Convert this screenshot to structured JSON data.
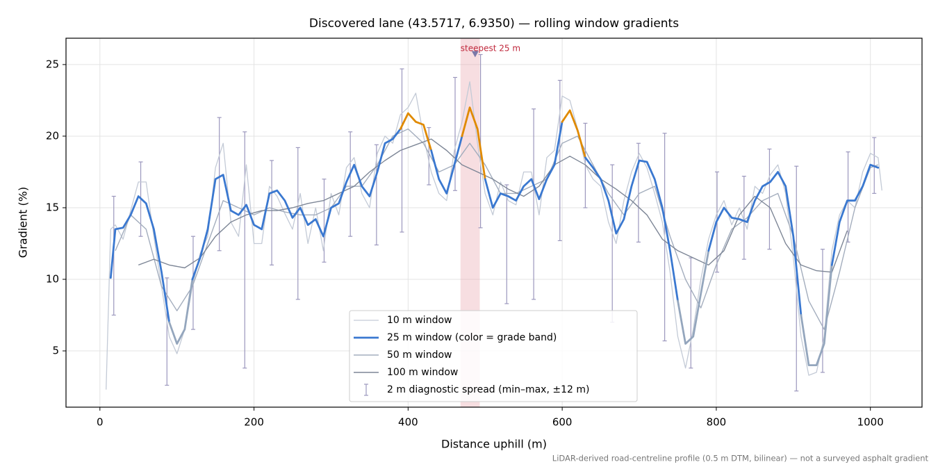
{
  "chart_data": {
    "type": "line",
    "title": "Discovered lane (43.5717, 6.9350) — rolling window gradients",
    "xlabel": "Distance uphill (m)",
    "ylabel": "Gradient (%)",
    "footnote": "LiDAR-derived road-centreline profile (0.5 m DTM, bilinear) — not a surveyed asphalt gradient",
    "xlim": [
      -44,
      1067
    ],
    "ylim": [
      1.07,
      26.84
    ],
    "xticks": [
      0,
      200,
      400,
      600,
      800,
      1000
    ],
    "yticks": [
      5,
      10,
      15,
      20,
      25
    ],
    "grid": true,
    "legend": "lower center",
    "series": [
      {
        "name": "10 m window",
        "color": "#c3cad6",
        "width": 1.3,
        "x": [
          8,
          14,
          20,
          30,
          40,
          50,
          60,
          70,
          80,
          90,
          100,
          110,
          120,
          130,
          140,
          150,
          160,
          170,
          180,
          190,
          200,
          210,
          220,
          230,
          240,
          250,
          260,
          270,
          280,
          290,
          300,
          310,
          320,
          330,
          340,
          350,
          360,
          370,
          380,
          390,
          400,
          410,
          420,
          430,
          440,
          450,
          460,
          470,
          480,
          490,
          500,
          510,
          520,
          530,
          540,
          550,
          560,
          570,
          580,
          590,
          600,
          610,
          620,
          630,
          640,
          650,
          660,
          670,
          680,
          690,
          700,
          710,
          720,
          730,
          740,
          750,
          760,
          770,
          780,
          790,
          800,
          810,
          820,
          830,
          840,
          850,
          860,
          870,
          880,
          890,
          900,
          910,
          920,
          930,
          940,
          950,
          960,
          970,
          980,
          990,
          1000,
          1010,
          1015
        ],
        "values": [
          2.3,
          13.5,
          13.8,
          12.8,
          14.8,
          16.8,
          16.8,
          13,
          9.5,
          6,
          4.8,
          6.5,
          9.5,
          11.8,
          13,
          17.8,
          19.5,
          14,
          13,
          18,
          12.5,
          12.5,
          16.5,
          15.8,
          14.6,
          13.5,
          16,
          12.5,
          15,
          12,
          16,
          14.5,
          17.8,
          18.5,
          16,
          15,
          18.8,
          20,
          19.5,
          21.5,
          22,
          23,
          20,
          17.5,
          16,
          15.5,
          19,
          21,
          23.8,
          19.5,
          16,
          14.5,
          16.8,
          15.5,
          15.2,
          17.5,
          17.5,
          14.5,
          18.5,
          19,
          22.8,
          22.5,
          20.5,
          18,
          17,
          16.5,
          14,
          12.5,
          15.5,
          17.5,
          18.8,
          17.8,
          16,
          14,
          10.5,
          6,
          3.8,
          6.5,
          10,
          12.8,
          14.5,
          15.5,
          13.8,
          15,
          13.5,
          16.5,
          16,
          17.3,
          18,
          16,
          11.5,
          6,
          3.3,
          3.5,
          6,
          12,
          14.5,
          15.5,
          15,
          17.5,
          18.8,
          18.5,
          16.2
        ]
      },
      {
        "name": "25 m window (color = grade band)",
        "color": "#3a78d0",
        "width": 2.8,
        "band_thresholds": [
          10,
          20
        ],
        "band_colors": [
          "#94a6bd",
          "#3a78d0",
          "#e08a00"
        ],
        "x": [
          14,
          20,
          30,
          40,
          50,
          60,
          70,
          80,
          90,
          100,
          110,
          120,
          130,
          140,
          150,
          160,
          170,
          180,
          190,
          200,
          210,
          220,
          230,
          240,
          250,
          260,
          270,
          280,
          290,
          300,
          310,
          320,
          330,
          340,
          350,
          360,
          370,
          380,
          390,
          400,
          410,
          420,
          430,
          440,
          450,
          460,
          470,
          480,
          490,
          500,
          510,
          520,
          530,
          540,
          550,
          560,
          570,
          580,
          590,
          600,
          610,
          620,
          630,
          640,
          650,
          660,
          670,
          680,
          690,
          700,
          710,
          720,
          730,
          740,
          750,
          760,
          770,
          780,
          790,
          800,
          810,
          820,
          830,
          840,
          850,
          860,
          870,
          880,
          890,
          900,
          910,
          920,
          930,
          940,
          950,
          960,
          970,
          980,
          990,
          1000,
          1010
        ],
        "values": [
          10.1,
          13.5,
          13.6,
          14.5,
          15.8,
          15.3,
          13.5,
          10.5,
          7,
          5.5,
          6.5,
          10,
          11.5,
          13.5,
          17,
          17.3,
          14.8,
          14.5,
          15.2,
          13.8,
          13.5,
          16,
          16.2,
          15.5,
          14.3,
          15,
          13.8,
          14.2,
          13,
          15,
          15.3,
          16.8,
          18,
          16.5,
          15.8,
          17.5,
          19.5,
          19.8,
          20.5,
          21.6,
          21,
          20.8,
          19,
          17,
          16,
          18,
          20,
          22,
          20.5,
          17,
          15,
          16,
          15.8,
          15.5,
          16.5,
          17,
          15.6,
          17,
          18,
          21,
          21.8,
          20.4,
          18.5,
          17.8,
          17,
          15.5,
          13.2,
          14.2,
          16.5,
          18.3,
          18.2,
          17,
          15,
          12,
          8.5,
          5.5,
          6,
          9,
          12,
          14,
          15,
          14.3,
          14.2,
          14,
          15.5,
          16.5,
          16.8,
          17.5,
          16.5,
          13,
          7.5,
          4,
          4,
          5.5,
          11,
          14,
          15.5,
          15.5,
          16.5,
          18,
          17.8
        ]
      },
      {
        "name": "50 m window",
        "color": "#a3adbd",
        "width": 1.4,
        "x": [
          20,
          40,
          60,
          80,
          100,
          120,
          140,
          160,
          180,
          200,
          220,
          240,
          260,
          280,
          300,
          320,
          340,
          360,
          380,
          400,
          420,
          440,
          460,
          480,
          500,
          520,
          540,
          560,
          580,
          600,
          620,
          640,
          660,
          680,
          700,
          720,
          740,
          760,
          780,
          800,
          820,
          840,
          860,
          880,
          900,
          920,
          940,
          960,
          980,
          1000,
          1010
        ],
        "values": [
          12,
          14.5,
          13.5,
          9.5,
          7.8,
          9.5,
          12.5,
          15.5,
          15,
          14.5,
          15,
          14.7,
          14.5,
          14.5,
          15,
          16.5,
          16.5,
          18,
          20,
          20.5,
          19.5,
          17.5,
          18,
          19.5,
          18,
          16,
          16,
          16.5,
          17,
          19.5,
          20,
          18,
          16,
          14.5,
          16,
          16.5,
          13,
          10,
          8,
          11,
          13.5,
          14.3,
          15.5,
          16,
          13,
          8.5,
          6.5,
          10.5,
          15,
          17.8,
          18
        ]
      },
      {
        "name": "100 m window",
        "color": "#7d8696",
        "width": 1.4,
        "x": [
          50,
          70,
          90,
          110,
          130,
          150,
          170,
          190,
          210,
          230,
          250,
          270,
          290,
          310,
          330,
          350,
          370,
          390,
          410,
          430,
          450,
          470,
          490,
          510,
          530,
          550,
          570,
          590,
          610,
          630,
          650,
          670,
          690,
          710,
          730,
          750,
          770,
          790,
          810,
          830,
          850,
          870,
          890,
          910,
          930,
          950,
          970
        ],
        "values": [
          11,
          11.4,
          11,
          10.8,
          11.5,
          13,
          14,
          14.5,
          14.8,
          14.8,
          15,
          15.3,
          15.5,
          16,
          16.5,
          17.5,
          18.3,
          19,
          19.4,
          19.8,
          19,
          18,
          17.5,
          17,
          16.3,
          15.8,
          16.5,
          18,
          18.6,
          18,
          17,
          16.3,
          15.5,
          14.5,
          12.8,
          12,
          11.5,
          11,
          12,
          14.5,
          15.8,
          15,
          12.5,
          11,
          10.6,
          10.5,
          13.4
        ]
      }
    ],
    "errorbars": {
      "name": "2 m diagnostic spread (min–max, ±12 m)",
      "color": "#9b97bd",
      "x": [
        18,
        53,
        87,
        121,
        155,
        188,
        223,
        257,
        291,
        325,
        359,
        392,
        427,
        461,
        494,
        528,
        563,
        597,
        630,
        665,
        699,
        733,
        767,
        801,
        836,
        869,
        904,
        938,
        971,
        1005
      ],
      "low": [
        7.5,
        13,
        2.6,
        6.5,
        12,
        3.8,
        11,
        8.6,
        11.2,
        13,
        12.4,
        13.3,
        16.6,
        16.2,
        13.6,
        8.3,
        8.6,
        12.7,
        15,
        7,
        12.6,
        5.7,
        3.8,
        10.5,
        11.4,
        12.1,
        2.2,
        3.5,
        12.6,
        16
      ],
      "high": [
        15.8,
        18.2,
        10.1,
        13,
        21.3,
        20.3,
        18.3,
        19.2,
        17,
        20.3,
        19.4,
        24.7,
        20.6,
        24.1,
        25.7,
        16.6,
        21.9,
        23.9,
        20.9,
        18,
        19.5,
        20.2,
        11.5,
        17.5,
        17.2,
        19.1,
        17.9,
        12.1,
        18.9,
        19.9
      ]
    },
    "highlight": {
      "label": "steepest 25 m",
      "xrange": [
        468,
        493
      ],
      "marker": [
        487,
        25.7
      ],
      "color": "#e8a0a8",
      "label_color": "#c0283c"
    }
  }
}
